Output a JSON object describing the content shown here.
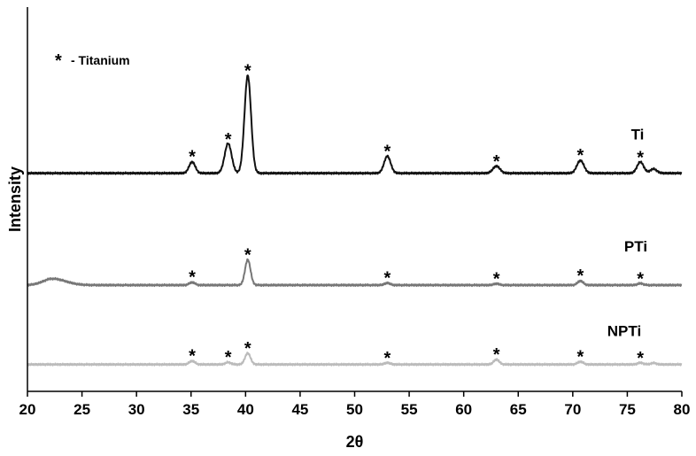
{
  "chart_data": {
    "type": "line",
    "xlabel": "2θ",
    "ylabel": "Intensity",
    "xlim": [
      20,
      80
    ],
    "x_ticks": [
      "20",
      "25",
      "30",
      "35",
      "40",
      "45",
      "50",
      "55",
      "60",
      "65",
      "70",
      "75",
      "80"
    ],
    "y_ticks_shown": false,
    "grid": false,
    "legend_note": {
      "symbol": "*",
      "text": "- Titanium"
    },
    "series": [
      {
        "name": "Ti",
        "color": "#111111",
        "baseline": 0.79,
        "peaks": [
          {
            "x": 35.1,
            "h": 0.08,
            "w": 0.28
          },
          {
            "x": 38.4,
            "h": 0.21,
            "w": 0.32
          },
          {
            "x": 40.2,
            "h": 0.69,
            "w": 0.3
          },
          {
            "x": 53.0,
            "h": 0.12,
            "w": 0.3
          },
          {
            "x": 63.0,
            "h": 0.05,
            "w": 0.32
          },
          {
            "x": 70.7,
            "h": 0.09,
            "w": 0.32
          },
          {
            "x": 76.2,
            "h": 0.08,
            "w": 0.3
          },
          {
            "x": 77.4,
            "h": 0.03,
            "w": 0.3
          }
        ],
        "markers": [
          35.1,
          38.4,
          40.2,
          53.0,
          63.0,
          70.7,
          76.2
        ]
      },
      {
        "name": "PTi",
        "color": "#777777",
        "baseline": 0.0,
        "hump": {
          "x": 22.3,
          "h": 0.045,
          "w": 1.2
        },
        "peaks": [
          {
            "x": 35.1,
            "h": 0.02,
            "w": 0.25
          },
          {
            "x": 40.2,
            "h": 0.18,
            "w": 0.25
          },
          {
            "x": 53.0,
            "h": 0.015,
            "w": 0.25
          },
          {
            "x": 63.0,
            "h": 0.01,
            "w": 0.25
          },
          {
            "x": 70.7,
            "h": 0.03,
            "w": 0.25
          },
          {
            "x": 76.2,
            "h": 0.012,
            "w": 0.25
          }
        ],
        "markers": [
          35.1,
          40.2,
          53.0,
          63.0,
          70.7,
          76.2
        ]
      },
      {
        "name": "NPTi",
        "color": "#bbbbbb",
        "baseline": -0.56,
        "peaks": [
          {
            "x": 35.1,
            "h": 0.025,
            "w": 0.25
          },
          {
            "x": 38.4,
            "h": 0.015,
            "w": 0.25
          },
          {
            "x": 40.2,
            "h": 0.08,
            "w": 0.25
          },
          {
            "x": 53.0,
            "h": 0.012,
            "w": 0.25
          },
          {
            "x": 63.0,
            "h": 0.035,
            "w": 0.25
          },
          {
            "x": 70.7,
            "h": 0.02,
            "w": 0.25
          },
          {
            "x": 76.2,
            "h": 0.012,
            "w": 0.25
          },
          {
            "x": 77.4,
            "h": 0.01,
            "w": 0.25
          }
        ],
        "markers": [
          35.1,
          38.4,
          40.2,
          53.0,
          63.0,
          70.7,
          76.2
        ]
      }
    ]
  }
}
